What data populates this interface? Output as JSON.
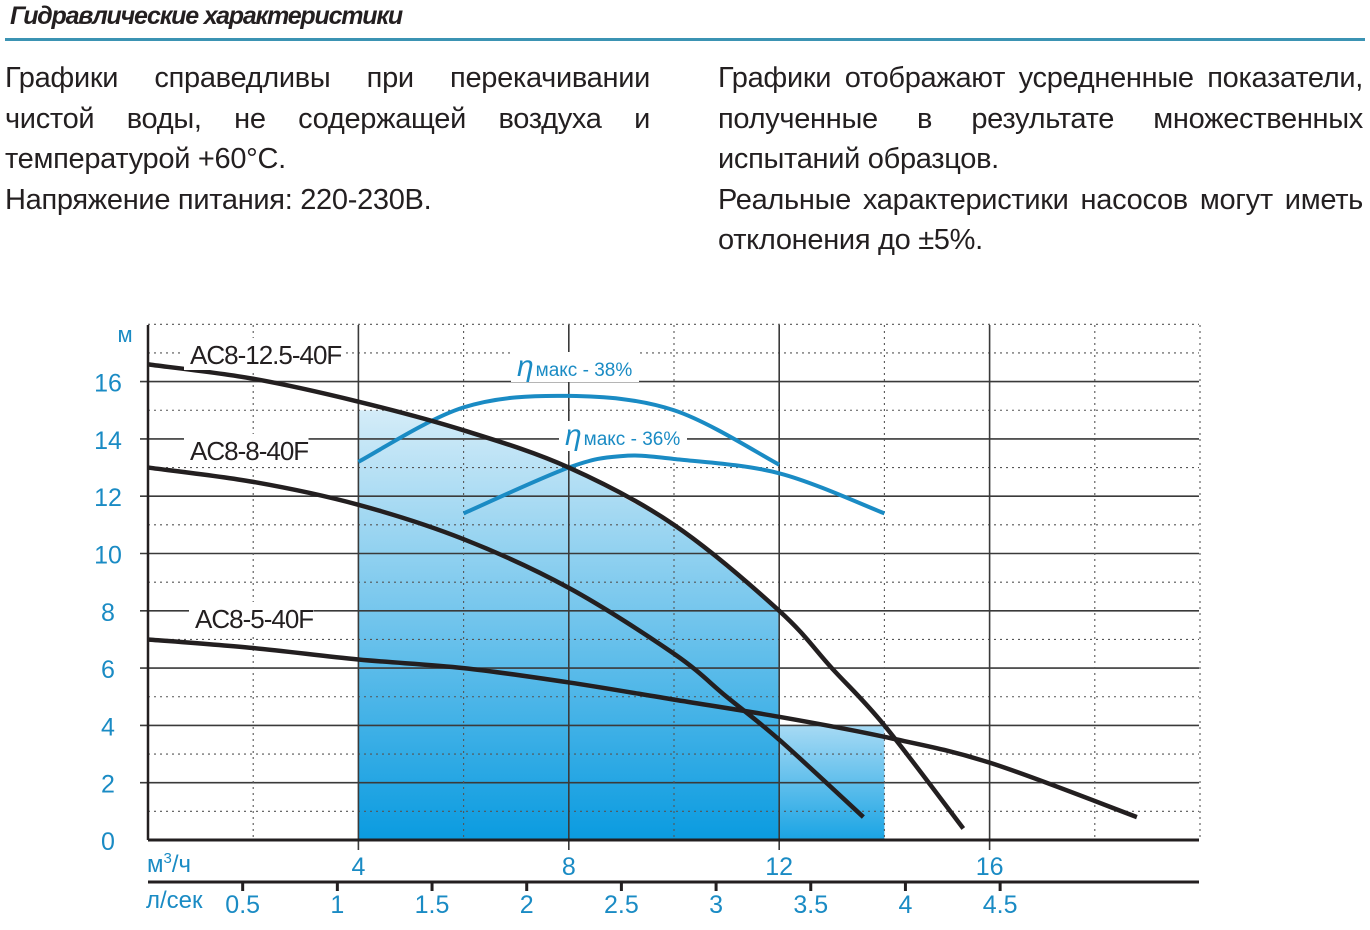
{
  "header": {
    "title": "Гидравлические характеристики",
    "rule_color": "#3b93b3"
  },
  "notes": {
    "left": [
      "Графики справедливы при перекачивании чистой воды, не содержащей воздуха и температурой +60°C.",
      "Напряжение питания: 220-230В."
    ],
    "right": [
      "Графики отображают усредненные показатели, полученные в результате множественных испытаний образцов.",
      "Реальные характеристики насосов могут иметь отклонения до ±5%."
    ]
  },
  "chart_data": {
    "type": "line",
    "title": "",
    "ylabel": "м",
    "xlabel": "м³/ч",
    "xlabel_secondary": "л/сек",
    "ylim": [
      0,
      18
    ],
    "xlim": [
      0,
      20
    ],
    "y_ticks": [
      "0",
      "2",
      "4",
      "6",
      "8",
      "10",
      "12",
      "14",
      "16"
    ],
    "x_ticks": [
      "4",
      "8",
      "12",
      "16"
    ],
    "x_ticks_values": [
      4,
      8,
      12,
      16
    ],
    "x2_ticks": [
      "0.5",
      "1",
      "1.5",
      "2",
      "2.5",
      "3",
      "3.5",
      "4",
      "4.5"
    ],
    "x2_ticks_values": [
      0.5,
      1,
      1.5,
      2,
      2.5,
      3,
      3.5,
      4,
      4.5
    ],
    "grid": true,
    "accent_color": "#1a8bc4",
    "series": [
      {
        "name": "AC8-12.5-40F",
        "x": [
          0,
          2,
          4,
          6,
          8,
          10,
          12,
          13,
          14,
          15.5
        ],
        "y": [
          16.6,
          16.1,
          15.3,
          14.3,
          13.0,
          11.0,
          8.0,
          6.0,
          4.0,
          0.4
        ]
      },
      {
        "name": "AC8-8-40F",
        "x": [
          0,
          2,
          4,
          6,
          8,
          10,
          11,
          12,
          13.6
        ],
        "y": [
          13.0,
          12.5,
          11.7,
          10.5,
          8.8,
          6.5,
          5.0,
          3.5,
          0.8
        ]
      },
      {
        "name": "AC8-5-40F",
        "x": [
          0,
          2,
          4,
          6,
          8,
          10,
          12,
          14,
          16,
          18.8
        ],
        "y": [
          7.0,
          6.7,
          6.3,
          6.0,
          5.5,
          4.9,
          4.3,
          3.6,
          2.7,
          0.8
        ]
      }
    ],
    "efficiency_curves": [
      {
        "label": "η макс - 38%",
        "eta": "η",
        "text": "макс - 38%",
        "x": [
          4,
          6,
          8,
          10,
          12
        ],
        "y": [
          13.2,
          15.1,
          15.5,
          15.0,
          13.1
        ]
      },
      {
        "label": "η макс - 36%",
        "eta": "η",
        "text": "макс - 36%",
        "x": [
          6,
          8,
          9,
          10,
          12,
          14
        ],
        "y": [
          11.4,
          13.0,
          13.4,
          13.3,
          12.8,
          11.4
        ]
      }
    ],
    "shaded_regions": [
      {
        "x": [
          4,
          12
        ],
        "under": "AC8-12.5-40F",
        "max_y": 15.0
      },
      {
        "x": [
          12,
          14
        ],
        "max_y": 4.0
      }
    ]
  }
}
